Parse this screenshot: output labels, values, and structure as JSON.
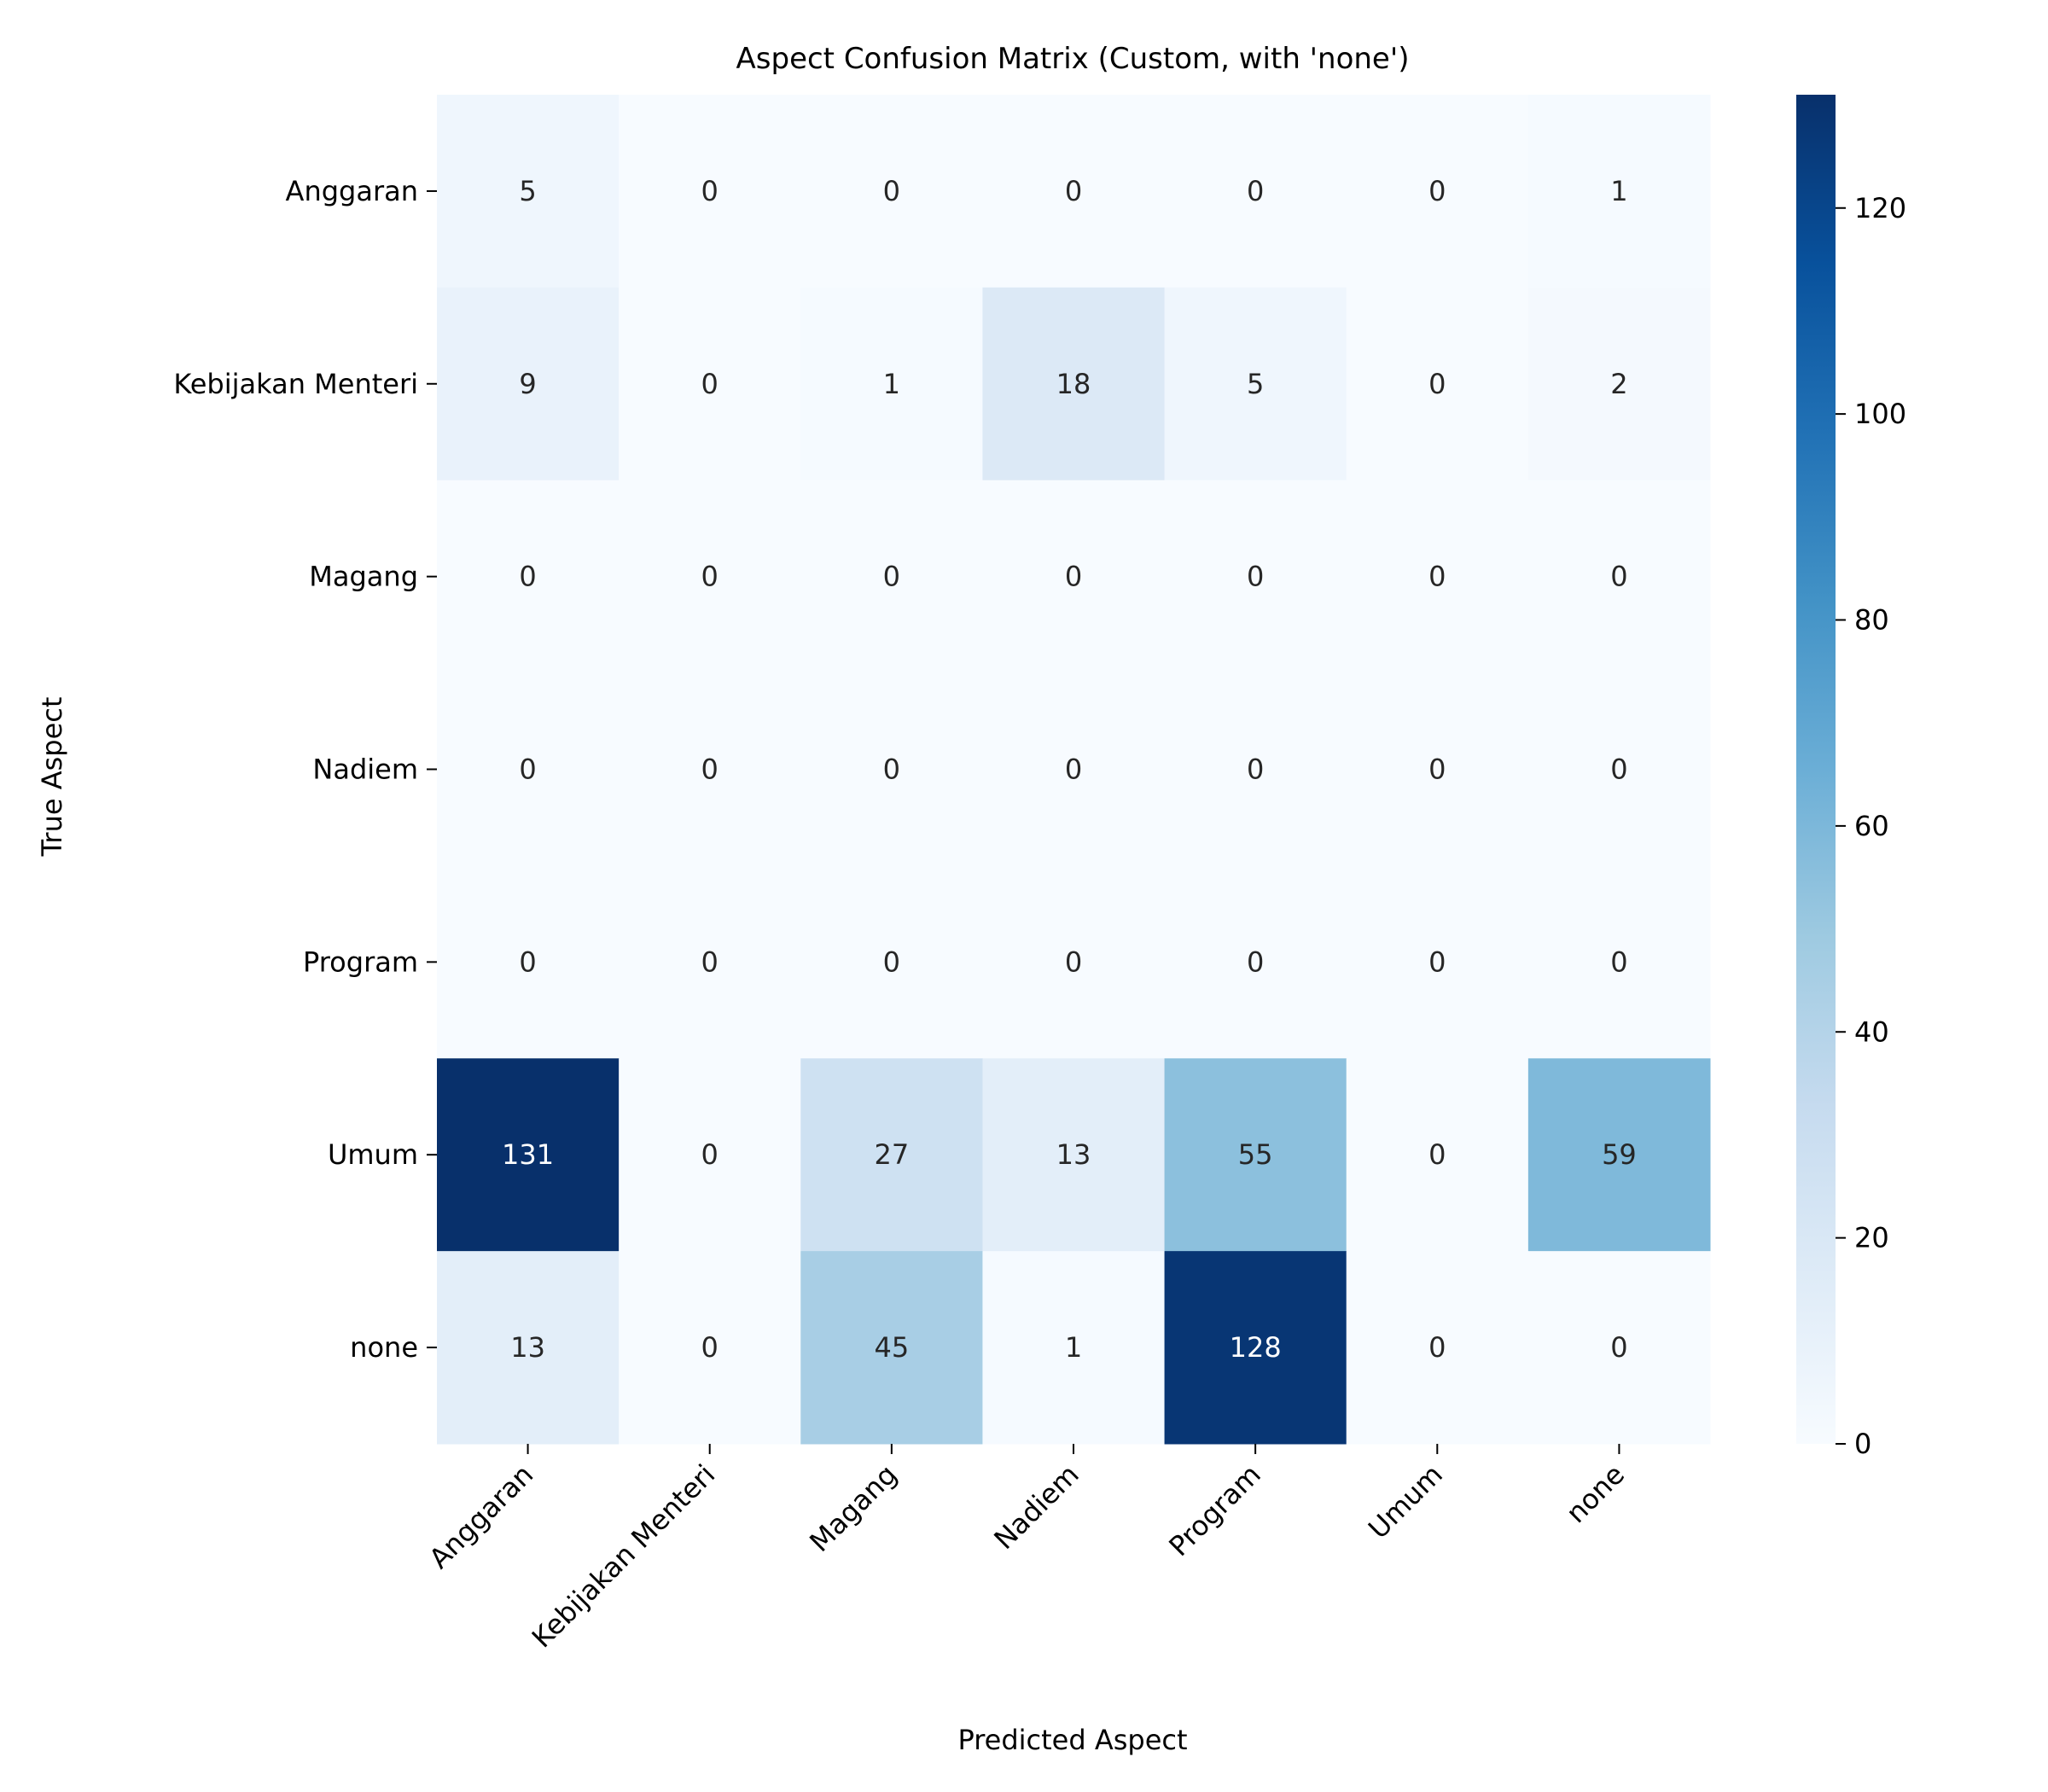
{
  "chart_data": {
    "type": "heatmap",
    "title": "Aspect Confusion Matrix (Custom, with 'none')",
    "xlabel": "Predicted Aspect",
    "ylabel": "True Aspect",
    "x_categories": [
      "Anggaran",
      "Kebijakan Menteri",
      "Magang",
      "Nadiem",
      "Program",
      "Umum",
      "none"
    ],
    "y_categories": [
      "Anggaran",
      "Kebijakan Menteri",
      "Magang",
      "Nadiem",
      "Program",
      "Umum",
      "none"
    ],
    "values": [
      [
        5,
        0,
        0,
        0,
        0,
        0,
        1
      ],
      [
        9,
        0,
        1,
        18,
        5,
        0,
        2
      ],
      [
        0,
        0,
        0,
        0,
        0,
        0,
        0
      ],
      [
        0,
        0,
        0,
        0,
        0,
        0,
        0
      ],
      [
        0,
        0,
        0,
        0,
        0,
        0,
        0
      ],
      [
        131,
        0,
        27,
        13,
        55,
        0,
        59
      ],
      [
        13,
        0,
        45,
        1,
        128,
        0,
        0
      ]
    ],
    "colorbar": {
      "colormap": "Blues",
      "range": [
        0,
        131
      ],
      "ticks": [
        0,
        20,
        40,
        60,
        80,
        100,
        120
      ]
    },
    "grid": false,
    "legend": "colorbar-right"
  }
}
